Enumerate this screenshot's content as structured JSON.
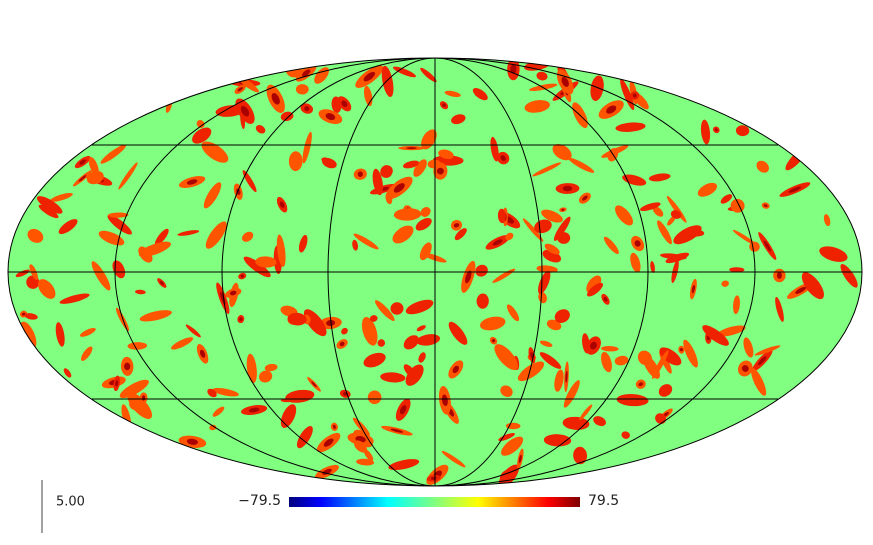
{
  "colorbar": {
    "min_label": "−79.5",
    "max_label": "79.5"
  },
  "scale_bar_label": "5.00"
}
